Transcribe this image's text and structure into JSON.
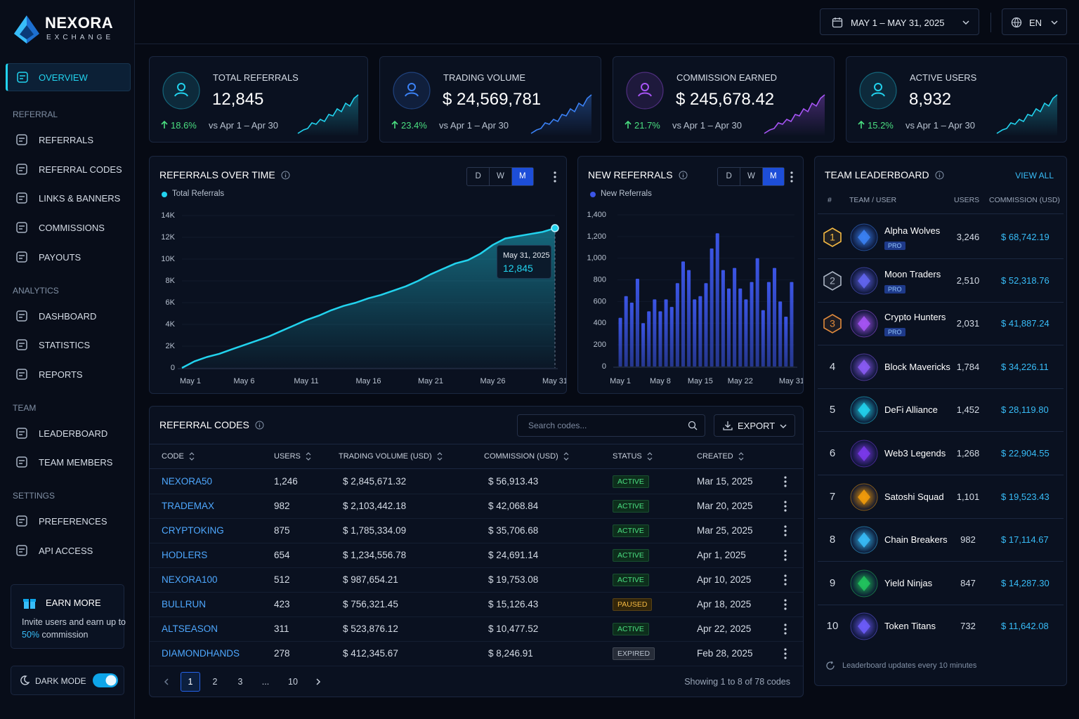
{
  "brand": {
    "name": "NEXORA",
    "tagline": "EXCHANGE"
  },
  "header": {
    "date_range": "MAY 1 – MAY 31, 2025",
    "language": "EN"
  },
  "sidebar": {
    "overview": "OVERVIEW",
    "groups": [
      {
        "title": "REFERRAL",
        "items": [
          "REFERRALS",
          "REFERRAL CODES",
          "LINKS & BANNERS",
          "COMMISSIONS",
          "PAYOUTS"
        ]
      },
      {
        "title": "ANALYTICS",
        "items": [
          "DASHBOARD",
          "STATISTICS",
          "REPORTS"
        ]
      },
      {
        "title": "TEAM",
        "items": [
          "LEADERBOARD",
          "TEAM MEMBERS"
        ]
      },
      {
        "title": "SETTINGS",
        "items": [
          "PREFERENCES",
          "API ACCESS"
        ]
      }
    ],
    "promo": {
      "title": "EARN MORE",
      "text": "Invite users and earn up to",
      "highlight": "50%",
      "suffix": "commission"
    },
    "dark_mode": "DARK MODE"
  },
  "kpis": [
    {
      "title": "TOTAL REFERRALS",
      "value": "12,845",
      "change": "18.6%",
      "compare": "vs Apr 1 – Apr 30",
      "color": "#22d3ee"
    },
    {
      "title": "TRADING VOLUME",
      "value": "$ 24,569,781",
      "change": "23.4%",
      "compare": "vs Apr 1 – Apr 30",
      "color": "#3b82f6"
    },
    {
      "title": "COMMISSION EARNED",
      "value": "$ 245,678.42",
      "change": "21.7%",
      "compare": "vs Apr 1 – Apr 30",
      "color": "#a855f7"
    },
    {
      "title": "ACTIVE USERS",
      "value": "8,932",
      "change": "15.2%",
      "compare": "vs Apr 1 – Apr 30",
      "color": "#22d3ee"
    }
  ],
  "chart_data": [
    {
      "type": "line",
      "title": "REFERRALS OVER TIME",
      "periods": [
        "D",
        "W",
        "M"
      ],
      "active_period": 2,
      "categories": [
        "May 1",
        null,
        null,
        null,
        null,
        "May 6",
        null,
        null,
        null,
        null,
        "May 11",
        null,
        null,
        null,
        null,
        "May 16",
        null,
        null,
        null,
        null,
        "May 21",
        null,
        null,
        null,
        null,
        "May 26",
        null,
        null,
        null,
        null,
        "May 31"
      ],
      "series": [
        {
          "name": "Total Referrals",
          "color": "#22d3ee",
          "values": [
            0,
            600,
            1000,
            1300,
            1700,
            2100,
            2500,
            2900,
            3400,
            3900,
            4400,
            4800,
            5300,
            5700,
            6000,
            6400,
            6700,
            7100,
            7500,
            8000,
            8600,
            9100,
            9600,
            9900,
            10500,
            11300,
            11900,
            12100,
            12300,
            12500,
            12845
          ]
        }
      ],
      "ylim": [
        0,
        14000
      ],
      "yticks": [
        0,
        {
          "value": 2000,
          "label": "2K"
        },
        {
          "value": 4000,
          "label": "4K"
        },
        {
          "value": 6000,
          "label": "6K"
        },
        {
          "value": 8000,
          "label": "8K"
        },
        {
          "value": 10000,
          "label": "10K"
        },
        {
          "value": 12000,
          "label": "12K"
        },
        {
          "value": 14000,
          "label": "14K"
        }
      ],
      "grid": true,
      "tooltip": {
        "title": "May 31, 2025",
        "label": "12,845"
      }
    },
    {
      "type": "bar",
      "title": "NEW REFERRALS",
      "periods": [
        "D",
        "W",
        "M"
      ],
      "active_period": 2,
      "categories": [
        "May 1",
        null,
        null,
        null,
        null,
        null,
        null,
        "May 8",
        null,
        null,
        null,
        null,
        null,
        null,
        "May 15",
        null,
        null,
        null,
        null,
        null,
        null,
        "May 22",
        null,
        null,
        null,
        null,
        null,
        null,
        null,
        null,
        "May 31"
      ],
      "series": [
        {
          "name": "New Referrals",
          "color": "#3b55e6",
          "values": [
            450,
            650,
            590,
            810,
            400,
            510,
            620,
            510,
            620,
            550,
            770,
            970,
            890,
            620,
            650,
            770,
            1090,
            1230,
            890,
            720,
            910,
            720,
            620,
            780,
            1000,
            520,
            780,
            910,
            600,
            460,
            780
          ]
        }
      ],
      "ylim": [
        0,
        1400
      ],
      "yticks": [
        0,
        200,
        400,
        600,
        800,
        {
          "value": 1000,
          "label": "1,000"
        },
        {
          "value": 1200,
          "label": "1,200"
        },
        {
          "value": 1400,
          "label": "1,400"
        }
      ],
      "grid": true
    }
  ],
  "leaderboard": {
    "title": "TEAM LEADERBOARD",
    "view_all": "VIEW ALL",
    "columns": [
      "#",
      "TEAM / USER",
      "USERS",
      "COMMISSION (USD)"
    ],
    "rows": [
      {
        "rank": "1",
        "name": "Alpha Wolves",
        "badge": "PRO",
        "users": "3,246",
        "commission": "$ 68,742.19",
        "rank_color": "#f5b942",
        "avatar_color": "#3b82f6"
      },
      {
        "rank": "2",
        "name": "Moon Traders",
        "badge": "PRO",
        "users": "2,510",
        "commission": "$ 52,318.76",
        "rank_color": "#aab4c3",
        "avatar_color": "#6366f1"
      },
      {
        "rank": "3",
        "name": "Crypto Hunters",
        "badge": "PRO",
        "users": "2,031",
        "commission": "$ 41,887.24",
        "rank_color": "#e08a3c",
        "avatar_color": "#a855f7"
      },
      {
        "rank": "4",
        "name": "Block Mavericks",
        "users": "1,784",
        "commission": "$ 34,226.11",
        "avatar_color": "#8b5cf6"
      },
      {
        "rank": "5",
        "name": "DeFi Alliance",
        "users": "1,452",
        "commission": "$ 28,119.80",
        "avatar_color": "#22d3ee"
      },
      {
        "rank": "6",
        "name": "Web3 Legends",
        "users": "1,268",
        "commission": "$ 22,904.55",
        "avatar_color": "#7c3aed"
      },
      {
        "rank": "7",
        "name": "Satoshi Squad",
        "users": "1,101",
        "commission": "$ 19,523.43",
        "avatar_color": "#f59e0b"
      },
      {
        "rank": "8",
        "name": "Chain Breakers",
        "users": "982",
        "commission": "$ 17,114.67",
        "avatar_color": "#38bdf8"
      },
      {
        "rank": "9",
        "name": "Yield Ninjas",
        "users": "847",
        "commission": "$ 14,287.30",
        "avatar_color": "#22c55e"
      },
      {
        "rank": "10",
        "name": "Token Titans",
        "users": "732",
        "commission": "$ 11,642.08",
        "avatar_color": "#6d5dfc"
      }
    ],
    "footer": "Leaderboard updates every 10 minutes"
  },
  "referral_codes": {
    "title": "REFERRAL CODES",
    "search_placeholder": "Search codes...",
    "export": "EXPORT",
    "columns": [
      "CODE",
      "USERS",
      "TRADING VOLUME (USD)",
      "COMMISSION (USD)",
      "STATUS",
      "CREATED"
    ],
    "rows": [
      {
        "code": "NEXORA50",
        "users": "1,246",
        "volume": "$ 2,845,671.32",
        "commission": "$ 56,913.43",
        "status": "ACTIVE",
        "status_color": "#4ade80",
        "status_bg": "#0d2e1c",
        "created": "Mar 15, 2025"
      },
      {
        "code": "TRADEMAX",
        "users": "982",
        "volume": "$ 2,103,442.18",
        "commission": "$ 42,068.84",
        "status": "ACTIVE",
        "status_color": "#4ade80",
        "status_bg": "#0d2e1c",
        "created": "Mar 20, 2025"
      },
      {
        "code": "CRYPTOKING",
        "users": "875",
        "volume": "$ 1,785,334.09",
        "commission": "$ 35,706.68",
        "status": "ACTIVE",
        "status_color": "#4ade80",
        "status_bg": "#0d2e1c",
        "created": "Mar 25, 2025"
      },
      {
        "code": "HODLERS",
        "users": "654",
        "volume": "$ 1,234,556.78",
        "commission": "$ 24,691.14",
        "status": "ACTIVE",
        "status_color": "#4ade80",
        "status_bg": "#0d2e1c",
        "created": "Apr 1, 2025"
      },
      {
        "code": "NEXORA100",
        "users": "512",
        "volume": "$ 987,654.21",
        "commission": "$ 19,753.08",
        "status": "ACTIVE",
        "status_color": "#4ade80",
        "status_bg": "#0d2e1c",
        "created": "Apr 10, 2025"
      },
      {
        "code": "BULLRUN",
        "users": "423",
        "volume": "$ 756,321.45",
        "commission": "$ 15,126.43",
        "status": "PAUSED",
        "status_color": "#f5b942",
        "status_bg": "#33260a",
        "created": "Apr 18, 2025"
      },
      {
        "code": "ALTSEASON",
        "users": "311",
        "volume": "$ 523,876.12",
        "commission": "$ 10,477.52",
        "status": "ACTIVE",
        "status_color": "#4ade80",
        "status_bg": "#0d2e1c",
        "created": "Apr 22, 2025"
      },
      {
        "code": "DIAMONDHANDS",
        "users": "278",
        "volume": "$ 412,345.67",
        "commission": "$ 8,246.91",
        "status": "EXPIRED",
        "status_color": "#b8c0cc",
        "status_bg": "#262c38",
        "created": "Feb 28, 2025"
      }
    ],
    "pages": [
      "1",
      "2",
      "3",
      "...",
      "10"
    ],
    "current_page": 0,
    "summary": "Showing 1 to 8 of 78 codes"
  }
}
